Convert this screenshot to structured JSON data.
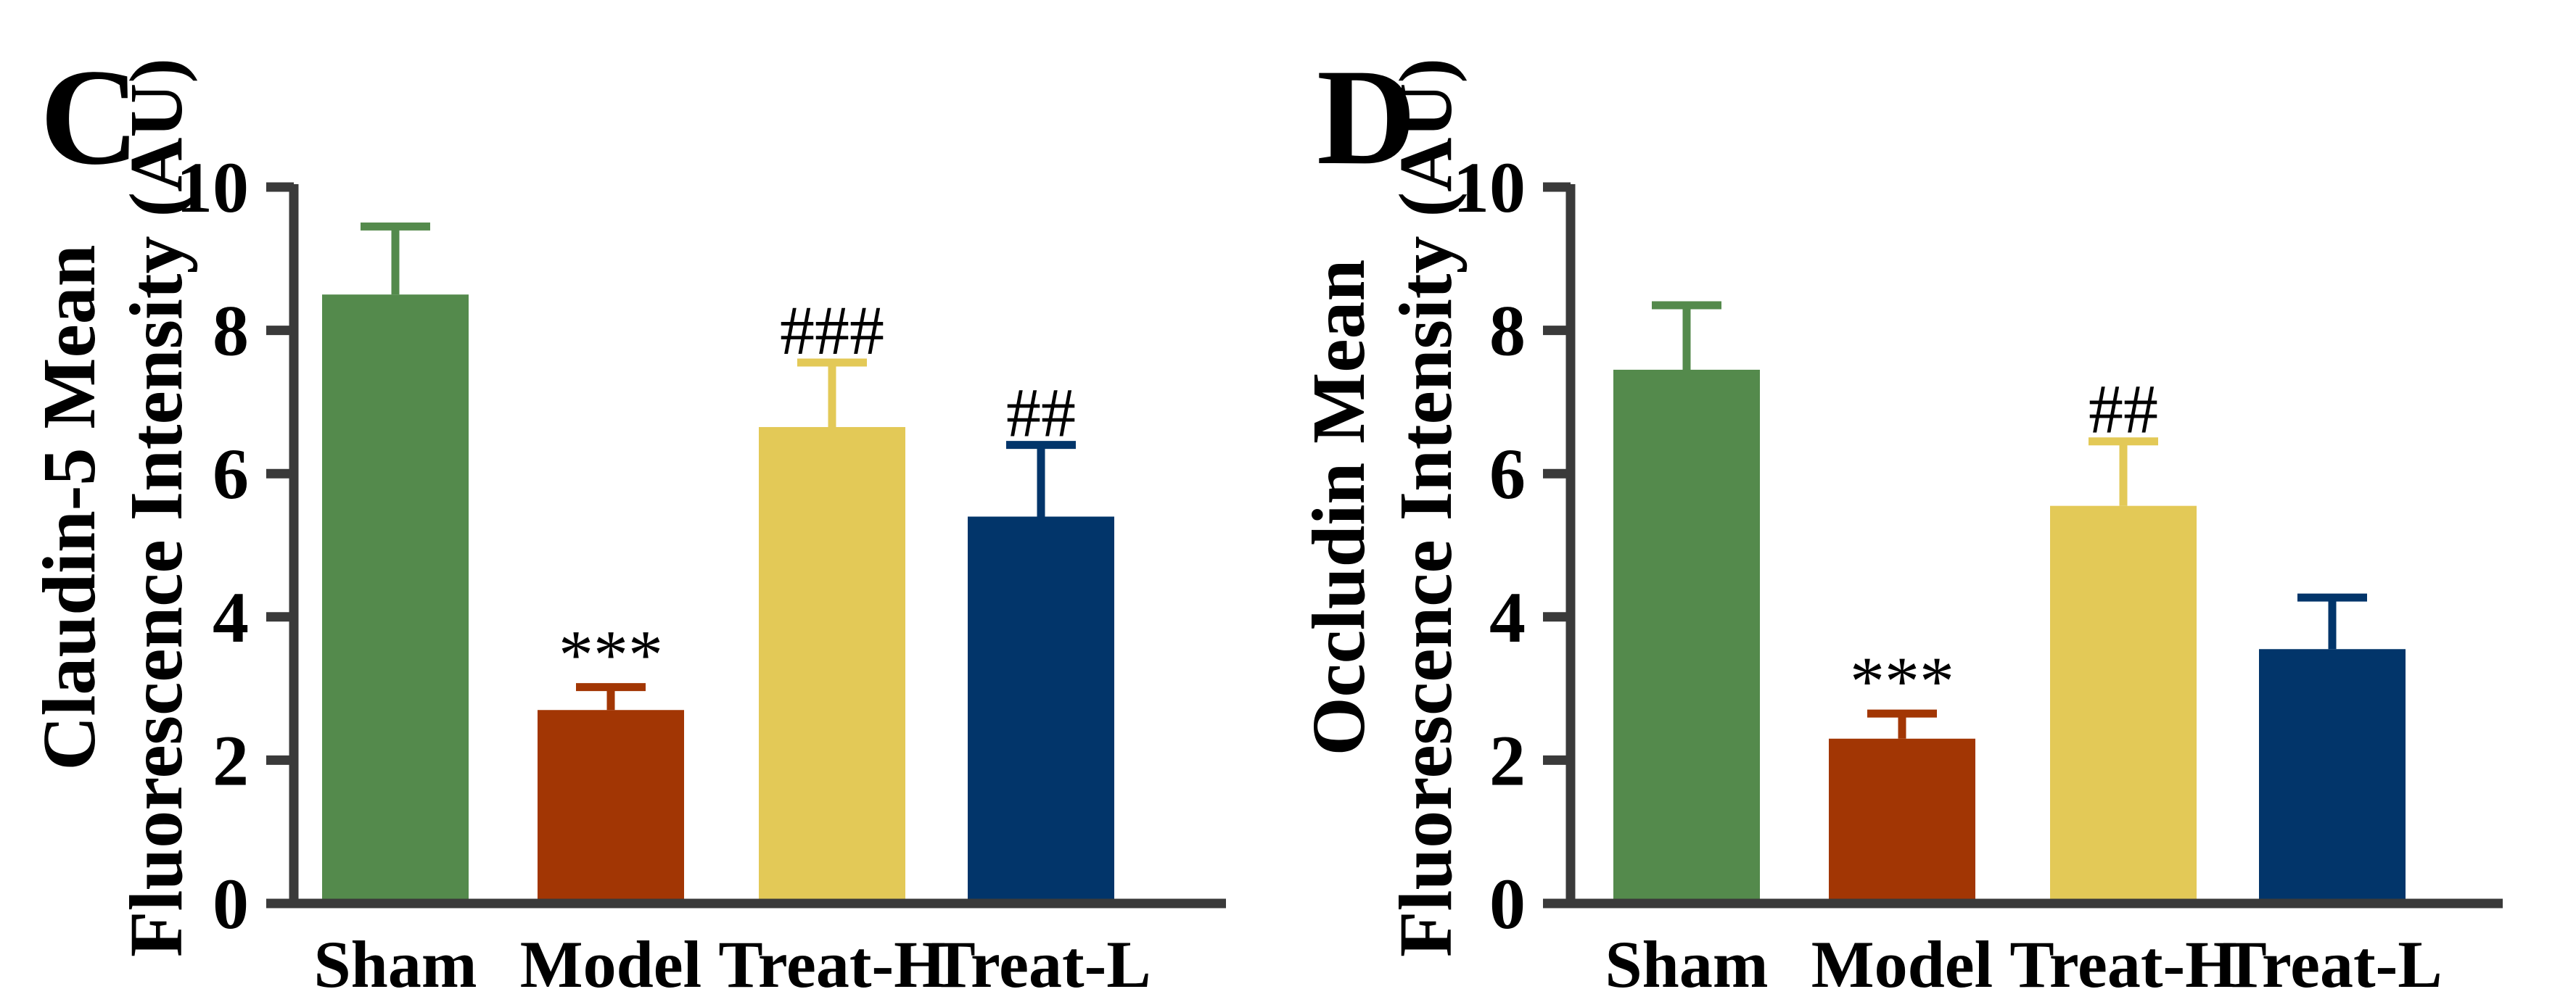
{
  "chart_data": [
    {
      "type": "bar",
      "panel": "C",
      "ylabel_line1": "Claudin-5 Mean",
      "ylabel_line2": "Fluorescence Intensity (AU)",
      "categories": [
        "Sham",
        "Model",
        "Treat-H",
        "Treat-L"
      ],
      "values": [
        8.5,
        2.7,
        6.65,
        5.4
      ],
      "errors": [
        0.95,
        0.32,
        0.9,
        1.0
      ],
      "annotations": [
        "",
        "***",
        "###",
        "##"
      ],
      "colors": [
        "#548a4c",
        "#a23604",
        "#e3c957",
        "#02356a"
      ],
      "ylim": [
        0,
        10
      ],
      "yticks": [
        "0",
        "2",
        "4",
        "6",
        "8",
        "10"
      ]
    },
    {
      "type": "bar",
      "panel": "D",
      "ylabel_line1": "Occludin Mean",
      "ylabel_line2": "Fluorescence Intensity (AU)",
      "categories": [
        "Sham",
        "Model",
        "Treat-H",
        "Treat-L"
      ],
      "values": [
        7.45,
        2.3,
        5.55,
        3.55
      ],
      "errors": [
        0.9,
        0.35,
        0.9,
        0.72
      ],
      "annotations": [
        "",
        "***",
        "##",
        ""
      ],
      "colors": [
        "#548a4c",
        "#a23604",
        "#e3c957",
        "#02356a"
      ],
      "ylim": [
        0,
        10
      ],
      "yticks": [
        "0",
        "2",
        "4",
        "6",
        "8",
        "10"
      ]
    }
  ]
}
